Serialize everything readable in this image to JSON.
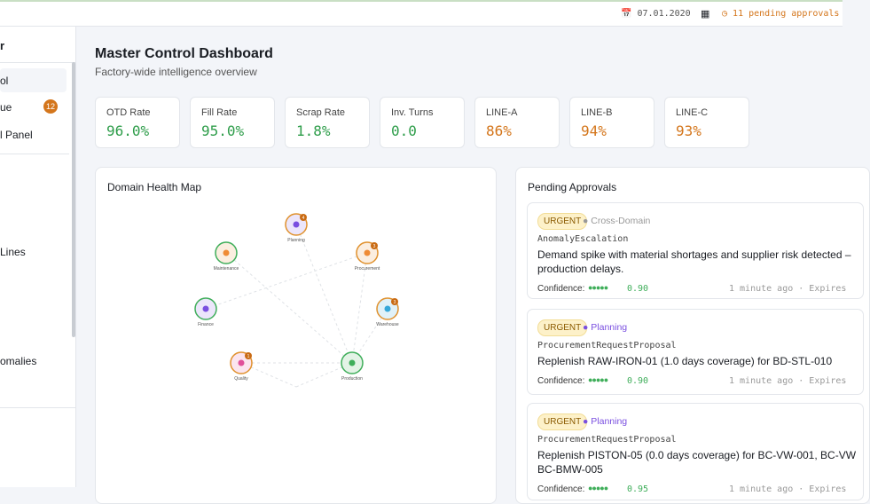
{
  "header": {
    "date": "07.01.2020",
    "pending": "11 pending approvals"
  },
  "sidebar": {
    "title": "r",
    "items": [
      {
        "label": "ol"
      },
      {
        "label": "ue",
        "badge": "12"
      },
      {
        "label": "l Panel"
      },
      {
        "label": "Lines"
      },
      {
        "label": "omalies"
      }
    ]
  },
  "main": {
    "title": "Master Control Dashboard",
    "subtitle": "Factory-wide intelligence overview"
  },
  "kpis": [
    {
      "label": "OTD Rate",
      "value": "96.0%"
    },
    {
      "label": "Fill Rate",
      "value": "95.0%"
    },
    {
      "label": "Scrap Rate",
      "value": "1.8%"
    },
    {
      "label": "Inv. Turns",
      "value": "0.0"
    },
    {
      "label": "LINE-A",
      "value": "86%"
    },
    {
      "label": "LINE-B",
      "value": "94%"
    },
    {
      "label": "LINE-C",
      "value": "93%"
    }
  ],
  "health_map": {
    "title": "Domain Health Map",
    "nodes": [
      {
        "label": "Planning",
        "badge": "4"
      },
      {
        "label": "Maintenance"
      },
      {
        "label": "Procurement",
        "badge": "3"
      },
      {
        "label": "Finance"
      },
      {
        "label": "Warehouse",
        "badge": "3"
      },
      {
        "label": "Quality",
        "badge": "1"
      },
      {
        "label": "Production"
      }
    ]
  },
  "approvals": {
    "title": "Pending Approvals",
    "cards": [
      {
        "priority": "URGENT",
        "domain": "Cross-Domain",
        "type": "AnomalyEscalation",
        "description_lines": [
          "Demand spike with material shortages and supplier risk detected –",
          "production delays."
        ],
        "confidence_label": "Confidence:",
        "confidence": "0.90",
        "time": "1 minute ago · Expires"
      },
      {
        "priority": "URGENT",
        "domain": "Planning",
        "type": "ProcurementRequestProposal",
        "description_lines": [
          "Replenish RAW-IRON-01 (1.0 days coverage) for BD-STL-010"
        ],
        "confidence_label": "Confidence:",
        "confidence": "0.90",
        "time": "1 minute ago · Expires"
      },
      {
        "priority": "URGENT",
        "domain": "Planning",
        "type": "ProcurementRequestProposal",
        "description_lines": [
          "Replenish PISTON-05 (0.0 days coverage) for BC-VW-001, BC-VW",
          "BC-BMW-005"
        ],
        "confidence_label": "Confidence:",
        "confidence": "0.95",
        "time": "1 minute ago · Expires"
      }
    ]
  }
}
